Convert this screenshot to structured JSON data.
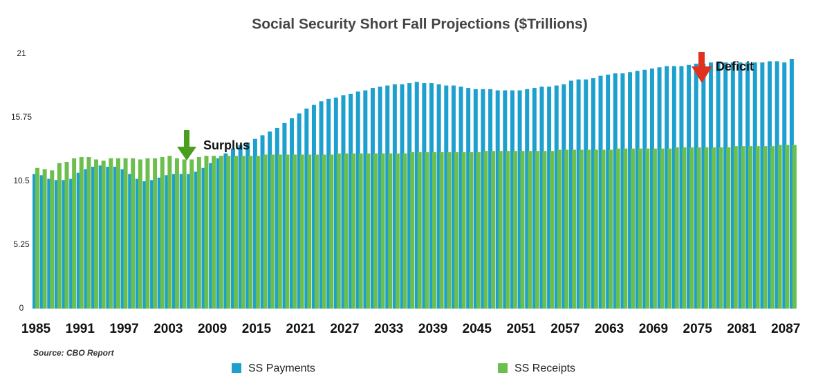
{
  "chart_data": {
    "type": "bar",
    "title": "Social Security Short Fall Projections ($Trillions)",
    "source": "Source: CBO Report",
    "annotations": [
      "Surplus",
      "Deficit"
    ],
    "categories": [
      "1985",
      null,
      null,
      null,
      null,
      null,
      "1991",
      null,
      null,
      null,
      null,
      null,
      "1997",
      null,
      null,
      null,
      null,
      null,
      "2003",
      null,
      null,
      null,
      null,
      null,
      "2009",
      null,
      null,
      null,
      null,
      null,
      "2015",
      null,
      null,
      null,
      null,
      null,
      "2021",
      null,
      null,
      null,
      null,
      null,
      "2027",
      null,
      null,
      null,
      null,
      null,
      "2033",
      null,
      null,
      null,
      null,
      null,
      "2039",
      null,
      null,
      null,
      null,
      null,
      "2045",
      null,
      null,
      null,
      null,
      null,
      "2051",
      null,
      null,
      null,
      null,
      null,
      "2057",
      null,
      null,
      null,
      null,
      null,
      "2063",
      null,
      null,
      null,
      null,
      null,
      "2069",
      null,
      null,
      null,
      null,
      null,
      "2075",
      null,
      null,
      null,
      null,
      null,
      "2081",
      null,
      null,
      null,
      null,
      null,
      "2087",
      null
    ],
    "series": [
      {
        "name": "SS Payments",
        "color": "#1ea0cf",
        "values": [
          11.1,
          11.0,
          10.7,
          10.6,
          10.6,
          10.7,
          11.2,
          11.5,
          11.7,
          11.8,
          11.7,
          11.7,
          11.5,
          11.1,
          10.7,
          10.5,
          10.6,
          10.8,
          11.0,
          11.1,
          11.1,
          11.1,
          11.3,
          11.6,
          12.0,
          12.4,
          12.8,
          13.2,
          13.5,
          13.7,
          14.0,
          14.3,
          14.6,
          14.9,
          15.3,
          15.7,
          16.1,
          16.5,
          16.8,
          17.1,
          17.3,
          17.4,
          17.6,
          17.7,
          17.9,
          18.0,
          18.2,
          18.3,
          18.4,
          18.5,
          18.5,
          18.6,
          18.7,
          18.6,
          18.6,
          18.5,
          18.4,
          18.4,
          18.3,
          18.2,
          18.1,
          18.1,
          18.1,
          18.0,
          18.0,
          18.0,
          18.0,
          18.1,
          18.2,
          18.3,
          18.3,
          18.4,
          18.5,
          18.8,
          18.9,
          18.9,
          19.0,
          19.2,
          19.3,
          19.4,
          19.4,
          19.5,
          19.6,
          19.7,
          19.8,
          19.9,
          20.0,
          20.0,
          20.0,
          20.1,
          20.2,
          20.2,
          20.3,
          20.3,
          20.3,
          20.3,
          20.3,
          20.3,
          20.3,
          20.3,
          20.4,
          20.4,
          20.3,
          20.6
        ]
      },
      {
        "name": "SS Receipts",
        "color": "#6cbf4f",
        "values": [
          11.6,
          11.5,
          11.4,
          12.0,
          12.1,
          12.4,
          12.5,
          12.5,
          12.3,
          12.2,
          12.4,
          12.4,
          12.4,
          12.4,
          12.3,
          12.4,
          12.4,
          12.5,
          12.6,
          12.4,
          12.3,
          12.3,
          12.5,
          12.6,
          12.6,
          12.6,
          12.6,
          12.6,
          12.6,
          12.6,
          12.6,
          12.7,
          12.7,
          12.7,
          12.7,
          12.7,
          12.7,
          12.7,
          12.7,
          12.7,
          12.7,
          12.8,
          12.8,
          12.8,
          12.8,
          12.8,
          12.8,
          12.8,
          12.8,
          12.8,
          12.8,
          12.9,
          12.9,
          12.9,
          12.9,
          12.9,
          12.9,
          12.9,
          12.9,
          12.9,
          12.9,
          13.0,
          13.0,
          13.0,
          13.0,
          13.0,
          13.0,
          13.0,
          13.0,
          13.0,
          13.0,
          13.1,
          13.1,
          13.1,
          13.1,
          13.1,
          13.1,
          13.1,
          13.1,
          13.2,
          13.2,
          13.2,
          13.2,
          13.2,
          13.2,
          13.2,
          13.2,
          13.3,
          13.3,
          13.3,
          13.3,
          13.3,
          13.3,
          13.3,
          13.3,
          13.4,
          13.4,
          13.4,
          13.4,
          13.4,
          13.4,
          13.5,
          13.5,
          13.5
        ]
      }
    ],
    "ylim": [
      0,
      21
    ],
    "yticks": [
      0,
      5.25,
      10.5,
      15.75,
      21
    ],
    "grid": false,
    "legend": "bottom"
  }
}
